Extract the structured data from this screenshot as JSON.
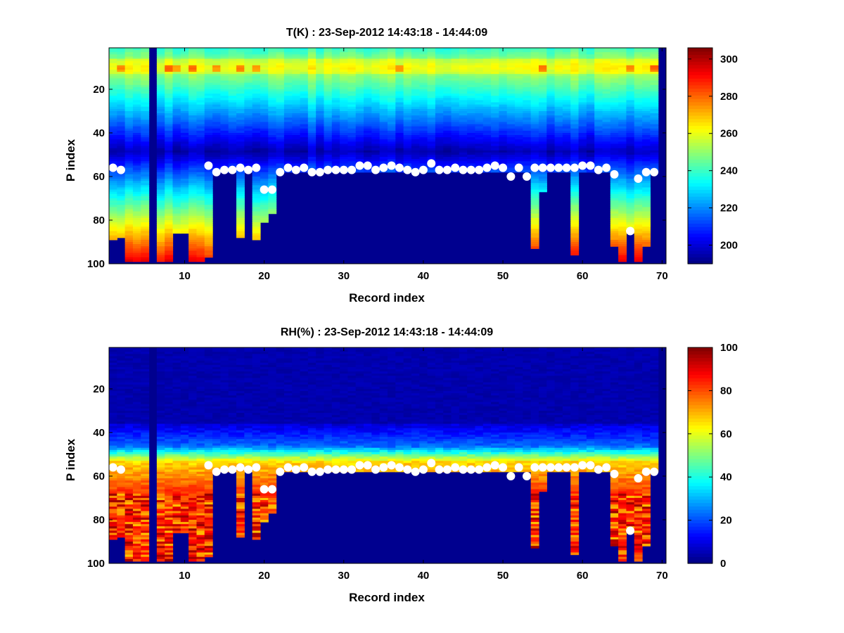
{
  "chart_data": [
    {
      "type": "heatmap",
      "title": "T(K) : 23-Sep-2012 14:43:18 - 14:44:09",
      "xlabel": "Record index",
      "ylabel": "P index",
      "xlim": [
        0.5,
        70.5
      ],
      "ylim": [
        1,
        100
      ],
      "y_reversed": true,
      "xticks": [
        10,
        20,
        30,
        40,
        50,
        60,
        70
      ],
      "yticks": [
        20,
        40,
        60,
        80,
        100
      ],
      "colormap": "jet",
      "clim": [
        190,
        306
      ],
      "colorbar_ticks": [
        200,
        220,
        240,
        260,
        280,
        300
      ],
      "field": "temperature",
      "overlay": {
        "type": "scatter",
        "marker": "circle",
        "color": "#ffffff",
        "x": [
          1,
          2,
          13,
          14,
          15,
          16,
          17,
          18,
          19,
          20,
          21,
          22,
          23,
          24,
          25,
          26,
          27,
          28,
          29,
          30,
          31,
          32,
          33,
          34,
          35,
          36,
          37,
          38,
          39,
          40,
          41,
          42,
          43,
          44,
          45,
          46,
          47,
          48,
          49,
          50,
          51,
          52,
          53,
          54,
          55,
          56,
          57,
          58,
          59,
          60,
          61,
          62,
          63,
          64,
          66,
          67,
          68,
          69
        ],
        "y": [
          56,
          57,
          55,
          58,
          57,
          57,
          56,
          57,
          56,
          66,
          66,
          58,
          56,
          57,
          56,
          58,
          58,
          57,
          57,
          57,
          57,
          55,
          55,
          57,
          56,
          55,
          56,
          57,
          58,
          57,
          54,
          57,
          57,
          56,
          57,
          57,
          57,
          56,
          55,
          56,
          60,
          56,
          60,
          56,
          56,
          56,
          56,
          56,
          56,
          55,
          55,
          57,
          56,
          59,
          85,
          61,
          58,
          58
        ]
      }
    },
    {
      "type": "heatmap",
      "title": "RH(%) : 23-Sep-2012 14:43:18 - 14:44:09",
      "xlabel": "Record index",
      "ylabel": "P index",
      "xlim": [
        0.5,
        70.5
      ],
      "ylim": [
        1,
        100
      ],
      "y_reversed": true,
      "xticks": [
        10,
        20,
        30,
        40,
        50,
        60,
        70
      ],
      "yticks": [
        20,
        40,
        60,
        80,
        100
      ],
      "colormap": "jet",
      "clim": [
        0,
        100
      ],
      "colorbar_ticks": [
        0,
        20,
        40,
        60,
        80,
        100
      ],
      "field": "humidity",
      "overlay": {
        "type": "scatter",
        "marker": "circle",
        "color": "#ffffff",
        "x": [
          1,
          2,
          13,
          14,
          15,
          16,
          17,
          18,
          19,
          20,
          21,
          22,
          23,
          24,
          25,
          26,
          27,
          28,
          29,
          30,
          31,
          32,
          33,
          34,
          35,
          36,
          37,
          38,
          39,
          40,
          41,
          42,
          43,
          44,
          45,
          46,
          47,
          48,
          49,
          50,
          51,
          52,
          53,
          54,
          55,
          56,
          57,
          58,
          59,
          60,
          61,
          62,
          63,
          64,
          66,
          67,
          68,
          69
        ],
        "y": [
          56,
          57,
          55,
          58,
          57,
          57,
          56,
          57,
          56,
          66,
          66,
          58,
          56,
          57,
          56,
          58,
          58,
          57,
          57,
          57,
          57,
          55,
          55,
          57,
          56,
          55,
          56,
          57,
          58,
          57,
          54,
          57,
          57,
          56,
          57,
          57,
          57,
          56,
          55,
          56,
          60,
          56,
          60,
          56,
          56,
          56,
          56,
          56,
          56,
          55,
          55,
          57,
          56,
          59,
          85,
          61,
          58,
          58
        ]
      }
    }
  ],
  "profile_bottoms": {
    "records": [
      1,
      2,
      3,
      4,
      5,
      6,
      7,
      8,
      9,
      10,
      11,
      12,
      13,
      14,
      15,
      16,
      17,
      18,
      19,
      20,
      21,
      22,
      23,
      24,
      25,
      26,
      27,
      28,
      29,
      30,
      31,
      32,
      33,
      34,
      35,
      36,
      37,
      38,
      39,
      40,
      41,
      42,
      43,
      44,
      45,
      46,
      47,
      48,
      49,
      50,
      51,
      52,
      53,
      54,
      55,
      56,
      57,
      58,
      59,
      60,
      61,
      62,
      63,
      64,
      65,
      66,
      67,
      68,
      69,
      70
    ],
    "p_index_bottom": [
      88,
      87,
      98,
      98,
      98,
      0,
      98,
      98,
      85,
      85,
      98,
      98,
      96,
      57,
      57,
      57,
      87,
      57,
      88,
      80,
      76,
      57,
      57,
      57,
      57,
      57,
      57,
      57,
      57,
      57,
      57,
      57,
      57,
      57,
      57,
      57,
      57,
      57,
      57,
      57,
      57,
      57,
      57,
      57,
      57,
      57,
      57,
      57,
      57,
      57,
      57,
      57,
      57,
      92,
      66,
      57,
      57,
      57,
      95,
      57,
      57,
      57,
      57,
      91,
      98,
      85,
      98,
      91,
      57,
      0
    ]
  }
}
